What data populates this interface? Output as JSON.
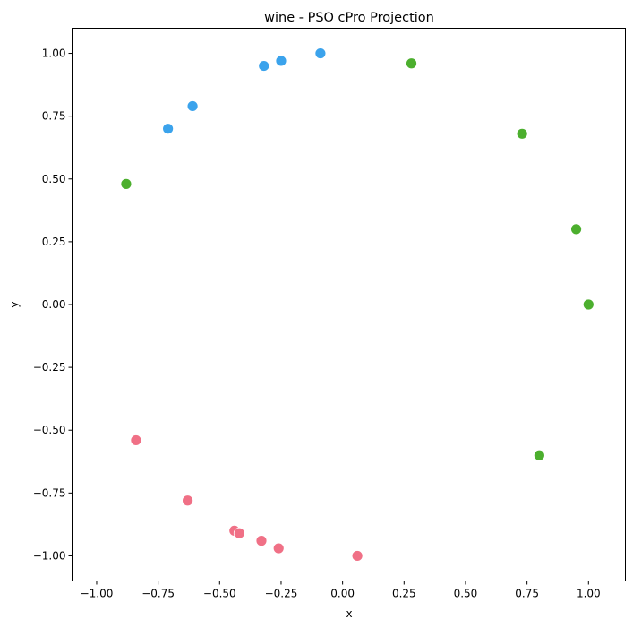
{
  "chart_data": {
    "type": "scatter",
    "title": "wine - PSO cPro Projection",
    "xlabel": "x",
    "ylabel": "y",
    "xlim": [
      -1.1,
      1.15
    ],
    "ylim": [
      -1.1,
      1.1
    ],
    "grid": false,
    "x_ticks": [
      -1.0,
      -0.75,
      -0.5,
      -0.25,
      0.0,
      0.25,
      0.5,
      0.75,
      1.0
    ],
    "x_tick_labels": [
      "−1.00",
      "−0.75",
      "−0.50",
      "−0.25",
      "0.00",
      "0.25",
      "0.50",
      "0.75",
      "1.00"
    ],
    "y_ticks": [
      1.0,
      0.75,
      0.5,
      0.25,
      0.0,
      -0.25,
      -0.5,
      -0.75,
      -1.0
    ],
    "y_tick_labels": [
      "1.00",
      "0.75",
      "0.50",
      "0.25",
      "0.00",
      "−0.25",
      "−0.50",
      "−0.75",
      "−1.00"
    ],
    "series": [
      {
        "color": "#3ba3ec",
        "points": [
          [
            -0.71,
            0.7
          ],
          [
            -0.61,
            0.79
          ],
          [
            -0.32,
            0.95
          ],
          [
            -0.25,
            0.97
          ],
          [
            -0.09,
            1.0
          ]
        ]
      },
      {
        "color": "#4caf2e",
        "points": [
          [
            -0.88,
            0.48
          ],
          [
            0.28,
            0.96
          ],
          [
            0.73,
            0.68
          ],
          [
            0.95,
            0.3
          ],
          [
            1.0,
            0.0
          ],
          [
            0.8,
            -0.6
          ]
        ]
      },
      {
        "color": "#f07086",
        "points": [
          [
            -0.84,
            -0.54
          ],
          [
            -0.63,
            -0.78
          ],
          [
            -0.44,
            -0.9
          ],
          [
            -0.42,
            -0.91
          ],
          [
            -0.33,
            -0.94
          ],
          [
            -0.26,
            -0.97
          ],
          [
            0.06,
            -1.0
          ]
        ]
      }
    ]
  }
}
